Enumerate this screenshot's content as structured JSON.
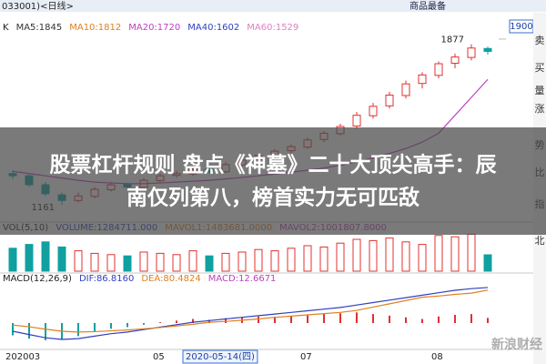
{
  "header": {
    "left": "033001)<日线>",
    "right": "商品最备"
  },
  "sidebar": [
    "卖",
    "买",
    "量",
    "涨",
    "势",
    "比",
    "指",
    "北"
  ],
  "headline": [
    "股票杠杆规则 盘点《神墓》二十大顶尖高手：辰",
    "南仅列第八，榜首实力无可匹敌"
  ],
  "watermark": "新浪财经",
  "chart_data": {
    "type": "candlestick",
    "legend": [
      {
        "text": "K",
        "color": "#222"
      },
      {
        "text": "MA5:1845",
        "color": "#333"
      },
      {
        "text": "MA10:1812",
        "color": "#e08020"
      },
      {
        "text": "MA20:1720",
        "color": "#c040c0"
      },
      {
        "text": "MA40:1602",
        "color": "#3040c0"
      },
      {
        "text": "MA60:1529",
        "color": "#e080c0"
      }
    ],
    "ylim": [
      1100,
      1920
    ],
    "yticks": [
      1900
    ],
    "candles": [
      {
        "open": 1300,
        "high": 1315,
        "low": 1275,
        "close": 1290
      },
      {
        "open": 1290,
        "high": 1300,
        "low": 1240,
        "close": 1250
      },
      {
        "open": 1250,
        "high": 1262,
        "low": 1200,
        "close": 1210
      },
      {
        "open": 1205,
        "high": 1215,
        "low": 1161,
        "close": 1180
      },
      {
        "open": 1180,
        "high": 1215,
        "low": 1172,
        "close": 1200
      },
      {
        "open": 1198,
        "high": 1240,
        "low": 1190,
        "close": 1230
      },
      {
        "open": 1228,
        "high": 1262,
        "low": 1220,
        "close": 1250
      },
      {
        "open": 1252,
        "high": 1260,
        "low": 1230,
        "close": 1240
      },
      {
        "open": 1238,
        "high": 1280,
        "low": 1232,
        "close": 1270
      },
      {
        "open": 1268,
        "high": 1300,
        "low": 1260,
        "close": 1290
      },
      {
        "open": 1292,
        "high": 1312,
        "low": 1282,
        "close": 1300
      },
      {
        "open": 1298,
        "high": 1330,
        "low": 1290,
        "close": 1320
      },
      {
        "open": 1322,
        "high": 1328,
        "low": 1300,
        "close": 1310
      },
      {
        "open": 1308,
        "high": 1350,
        "low": 1302,
        "close": 1340
      },
      {
        "open": 1338,
        "high": 1370,
        "low": 1330,
        "close": 1360
      },
      {
        "open": 1362,
        "high": 1390,
        "low": 1350,
        "close": 1380
      },
      {
        "open": 1378,
        "high": 1410,
        "low": 1370,
        "close": 1400
      },
      {
        "open": 1402,
        "high": 1430,
        "low": 1390,
        "close": 1420
      },
      {
        "open": 1418,
        "high": 1462,
        "low": 1410,
        "close": 1450
      },
      {
        "open": 1452,
        "high": 1490,
        "low": 1440,
        "close": 1480
      },
      {
        "open": 1478,
        "high": 1522,
        "low": 1470,
        "close": 1510
      },
      {
        "open": 1512,
        "high": 1575,
        "low": 1500,
        "close": 1560
      },
      {
        "open": 1558,
        "high": 1615,
        "low": 1545,
        "close": 1600
      },
      {
        "open": 1602,
        "high": 1665,
        "low": 1590,
        "close": 1650
      },
      {
        "open": 1648,
        "high": 1715,
        "low": 1635,
        "close": 1700
      },
      {
        "open": 1702,
        "high": 1752,
        "low": 1680,
        "close": 1740
      },
      {
        "open": 1738,
        "high": 1800,
        "low": 1725,
        "close": 1790
      },
      {
        "open": 1792,
        "high": 1835,
        "low": 1770,
        "close": 1820
      },
      {
        "open": 1818,
        "high": 1877,
        "low": 1805,
        "close": 1860
      },
      {
        "open": 1858,
        "high": 1866,
        "low": 1830,
        "close": 1845
      }
    ],
    "ma_series": [
      {
        "color": "#c040c0",
        "values": [
          1310,
          1300,
          1290,
          1280,
          1270,
          1262,
          1258,
          1255,
          1255,
          1258,
          1262,
          1266,
          1270,
          1276,
          1283,
          1290,
          1298,
          1306,
          1315,
          1325,
          1337,
          1352,
          1370,
          1390,
          1412,
          1440,
          1480,
          1560,
          1640,
          1720
        ]
      }
    ],
    "x_labels": [
      "202003",
      null,
      null,
      null,
      null,
      null,
      null,
      null,
      null,
      "05",
      null,
      "2020-05-14(四)",
      null,
      null,
      null,
      null,
      null,
      null,
      "07",
      null,
      null,
      null,
      null,
      null,
      null,
      null,
      "08",
      null,
      null,
      null
    ],
    "volume_legend": [
      {
        "text": "VOL(5,10)",
        "color": "#222"
      },
      {
        "text": "VOLUME:1284711.000",
        "color": "#3040c0"
      },
      {
        "text": "MAVOL1:1483681.0000",
        "color": "#e08020"
      },
      {
        "text": "MAVOL2:1001807.8000",
        "color": "#c040c0"
      }
    ],
    "volume_lim": [
      0,
      3000000
    ],
    "volume": [
      1800000,
      2100000,
      2300000,
      1900000,
      1600000,
      1400000,
      1300000,
      1200000,
      1500000,
      1400000,
      1300000,
      1600000,
      1200000,
      1400000,
      1500000,
      1700000,
      1600000,
      1800000,
      2000000,
      1900000,
      2200000,
      2500000,
      2400000,
      2600000,
      2300000,
      2100000,
      2800000,
      2700000,
      2900000,
      1284711
    ],
    "macd_legend": [
      {
        "text": "MACD(12,26,9)",
        "color": "#222"
      },
      {
        "text": "DIF:86.8160",
        "color": "#3040c0"
      },
      {
        "text": "DEA:80.4824",
        "color": "#e08020"
      },
      {
        "text": "MACD:12.6671",
        "color": "#c040c0"
      }
    ],
    "macd_lim": [
      -60,
      100
    ],
    "macd": [
      -30,
      -38,
      -42,
      -40,
      -32,
      -22,
      -14,
      -10,
      -4,
      2,
      6,
      10,
      8,
      12,
      14,
      16,
      15,
      18,
      20,
      22,
      24,
      26,
      22,
      18,
      14,
      10,
      16,
      20,
      22,
      12.6671
    ],
    "dif": [
      -20,
      -28,
      -36,
      -40,
      -38,
      -32,
      -26,
      -22,
      -16,
      -10,
      -4,
      2,
      6,
      10,
      14,
      18,
      22,
      26,
      30,
      34,
      38,
      44,
      50,
      56,
      62,
      68,
      74,
      80,
      84,
      86.816
    ],
    "dea": [
      -5,
      -9,
      -15,
      -20,
      -22,
      -21,
      -19,
      -17,
      -14,
      -11,
      -7,
      -3,
      2,
      4,
      7,
      10,
      14,
      17,
      20,
      23,
      26,
      31,
      39,
      47,
      55,
      63,
      66,
      70,
      73,
      80.4824
    ]
  }
}
